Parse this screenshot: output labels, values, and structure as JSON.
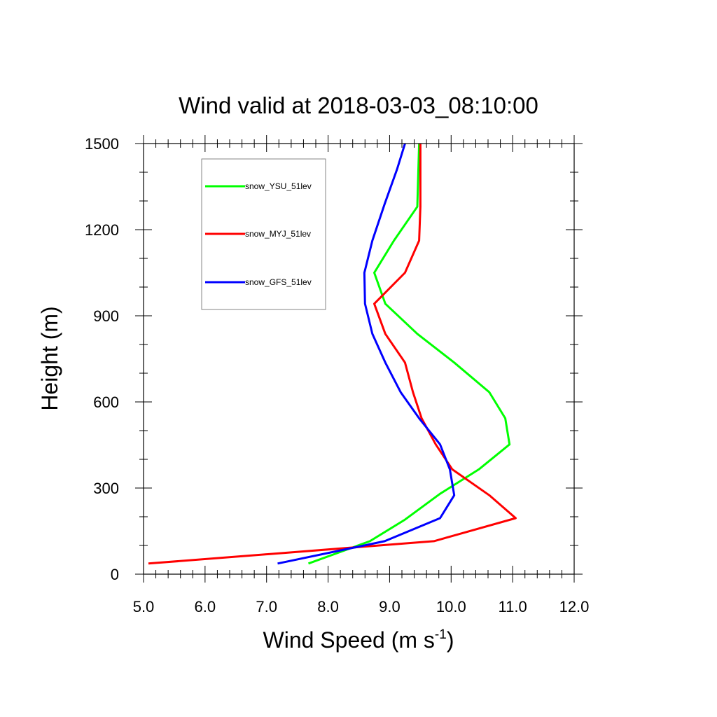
{
  "chart_data": {
    "type": "line",
    "title": "Wind valid at 2018-03-03_08:10:00",
    "xlabel": "Wind Speed (m s",
    "xlabel_sup": "-1",
    "xlabel_close": ")",
    "ylabel": "Height (m)",
    "xlim": [
      5.0,
      12.0
    ],
    "ylim": [
      0,
      1500
    ],
    "xticks": [
      5.0,
      6.0,
      7.0,
      8.0,
      9.0,
      10.0,
      11.0,
      12.0
    ],
    "xtick_labels": [
      "5.0",
      "6.0",
      "7.0",
      "8.0",
      "9.0",
      "10.0",
      "11.0",
      "12.0"
    ],
    "yticks": [
      0,
      300,
      600,
      900,
      1200,
      1500
    ],
    "ytick_labels": [
      "0",
      "300",
      "600",
      "900",
      "1200",
      "1500"
    ],
    "grid": false,
    "legend_position": "top-left",
    "series": [
      {
        "name": "snow_YSU_51lev",
        "color": "#00ff00",
        "points": [
          [
            7.68,
            37
          ],
          [
            8.68,
            115
          ],
          [
            9.25,
            190
          ],
          [
            9.82,
            280
          ],
          [
            10.45,
            365
          ],
          [
            10.95,
            452
          ],
          [
            10.88,
            543
          ],
          [
            10.62,
            634
          ],
          [
            10.05,
            737
          ],
          [
            9.45,
            837
          ],
          [
            8.93,
            942
          ],
          [
            8.75,
            1050
          ],
          [
            9.07,
            1162
          ],
          [
            9.45,
            1280
          ],
          [
            9.48,
            1500
          ]
        ]
      },
      {
        "name": "snow_MYJ_51lev",
        "color": "#ff0000",
        "points": [
          [
            5.08,
            37
          ],
          [
            9.72,
            115
          ],
          [
            11.05,
            195
          ],
          [
            10.62,
            275
          ],
          [
            10.02,
            365
          ],
          [
            9.75,
            452
          ],
          [
            9.52,
            543
          ],
          [
            9.38,
            634
          ],
          [
            9.25,
            737
          ],
          [
            8.93,
            837
          ],
          [
            8.75,
            942
          ],
          [
            9.25,
            1050
          ],
          [
            9.48,
            1162
          ],
          [
            9.5,
            1280
          ],
          [
            9.5,
            1500
          ]
        ]
      },
      {
        "name": "snow_GFS_51lev",
        "color": "#0000ff",
        "points": [
          [
            7.18,
            37
          ],
          [
            8.92,
            115
          ],
          [
            9.82,
            195
          ],
          [
            10.05,
            275
          ],
          [
            9.98,
            365
          ],
          [
            9.82,
            452
          ],
          [
            9.48,
            543
          ],
          [
            9.18,
            634
          ],
          [
            8.93,
            737
          ],
          [
            8.72,
            837
          ],
          [
            8.6,
            942
          ],
          [
            8.59,
            1050
          ],
          [
            8.72,
            1162
          ],
          [
            8.92,
            1290
          ],
          [
            9.12,
            1410
          ],
          [
            9.25,
            1500
          ]
        ]
      }
    ]
  }
}
